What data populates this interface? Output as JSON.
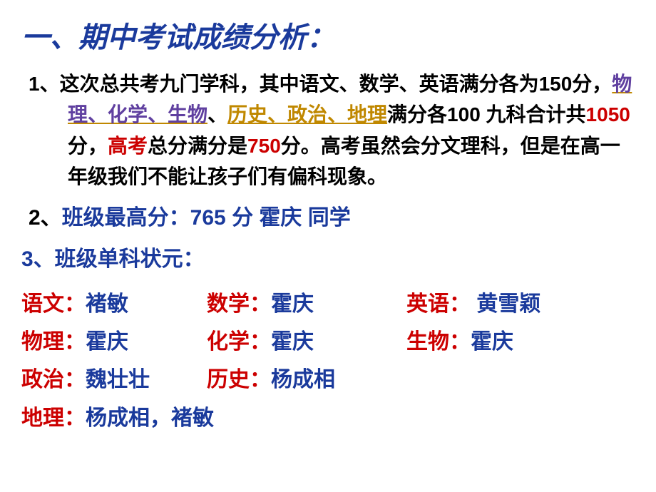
{
  "title": "一、期中考试成绩分析：",
  "para1": {
    "lead": "1、这次总共考九门学科，其中语文、数学、英语满分各为150分，",
    "science": "物理、化学、生物",
    "sep": "、",
    "humanities": "历史、政治、地理",
    "mid1": "满分各100   九科合计共",
    "total": "1050",
    "mid2": "分，",
    "gaokao": "高考",
    "mid3": "总分满分是",
    "score750": "750",
    "tail": "分。高考虽然会分文理科，但是在高一年级我们不能让孩子们有偏科现象。"
  },
  "para2": {
    "label": "2、",
    "text": "班级最高分：765  分    霍庆  同学"
  },
  "para3": "3、班级单科状元：",
  "subjects": {
    "row1": [
      {
        "label": "语文：",
        "name": "褚敏"
      },
      {
        "label": "数学：",
        "name": "霍庆"
      },
      {
        "label": "英语：",
        "name": " 黄雪颖"
      }
    ],
    "row2": [
      {
        "label": "物理：",
        "name": "霍庆"
      },
      {
        "label": "化学：",
        "name": "霍庆"
      },
      {
        "label": "生物：",
        "name": "霍庆"
      }
    ],
    "row3": [
      {
        "label": "政治：",
        "name": "魏壮壮"
      },
      {
        "label": "历史：",
        "name": "杨成相"
      }
    ],
    "row4": [
      {
        "label": "地理：",
        "name": "杨成相，褚敏"
      }
    ]
  },
  "colors": {
    "blue": "#1a3a9c",
    "red": "#cc0000",
    "orange": "#c08800"
  }
}
